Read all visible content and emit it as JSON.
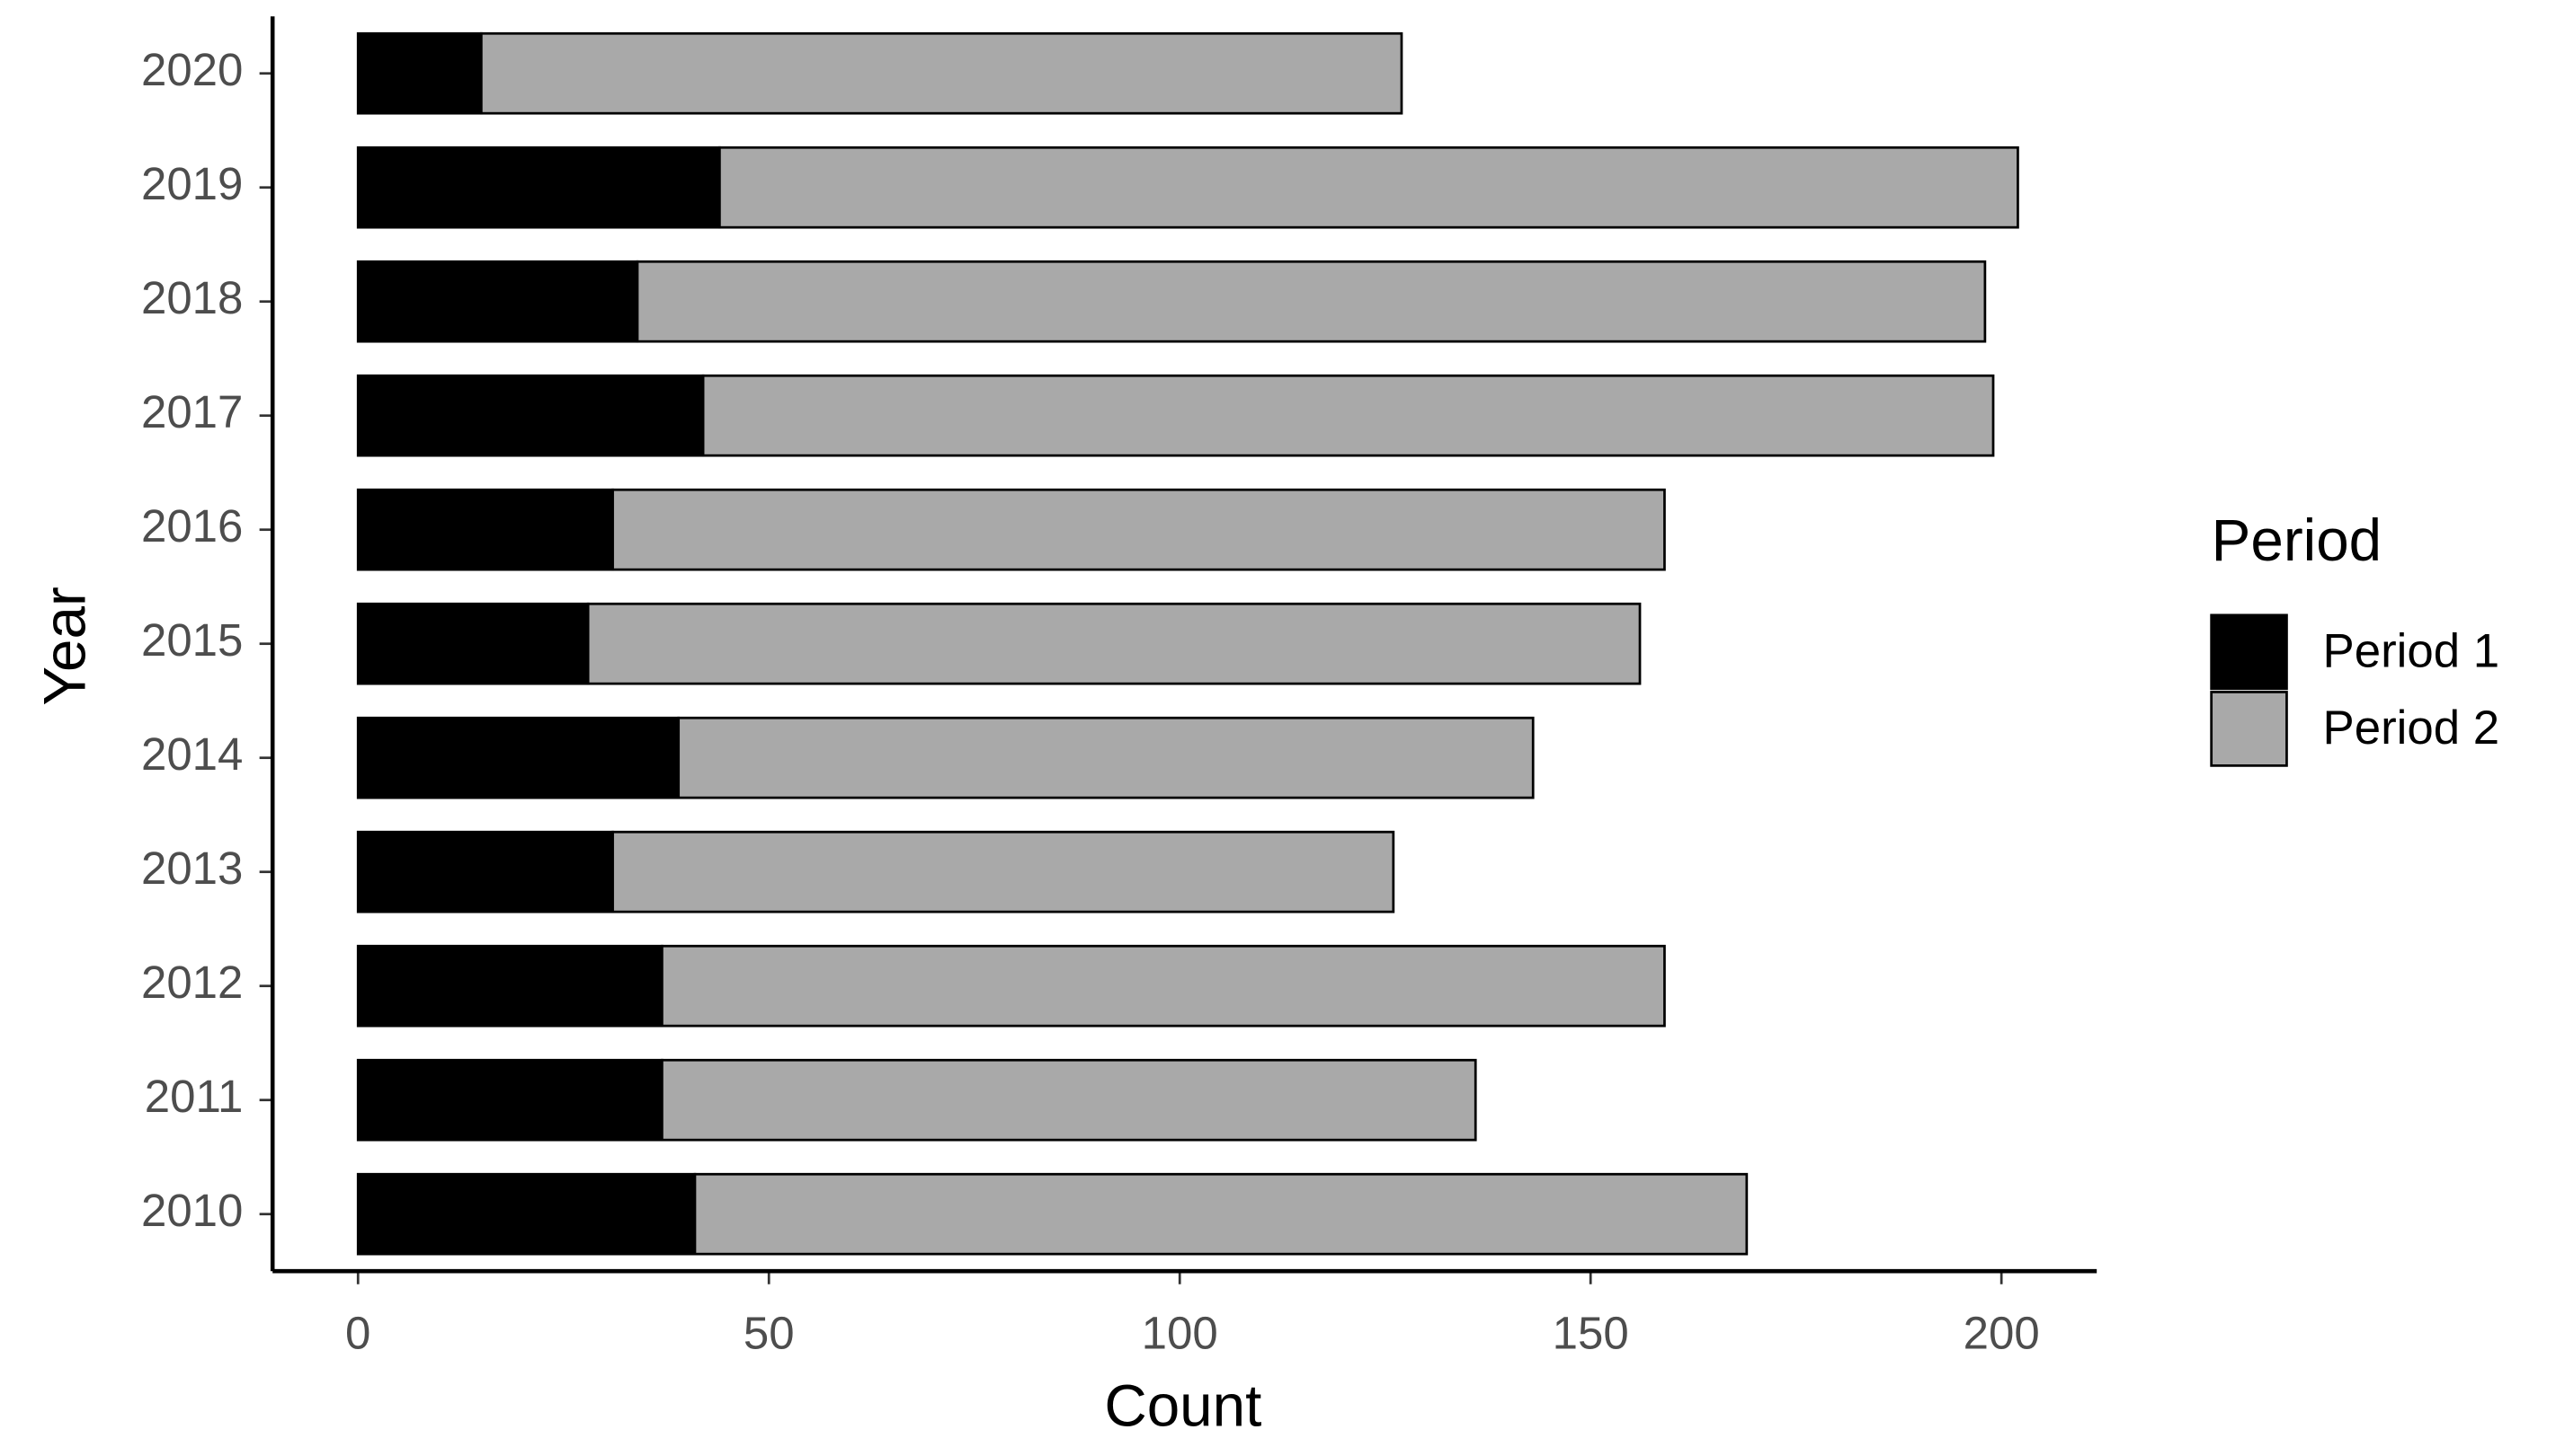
{
  "chart_data": {
    "type": "stacked-barh",
    "x_label": "Count",
    "y_label": "Year",
    "legend_title": "Period",
    "categories": [
      "2010",
      "2011",
      "2012",
      "2013",
      "2014",
      "2015",
      "2016",
      "2017",
      "2018",
      "2019",
      "2020"
    ],
    "series": [
      {
        "name": "Period 1",
        "color": "#000000",
        "values": [
          41,
          37,
          37,
          31,
          39,
          28,
          31,
          42,
          34,
          44,
          15
        ]
      },
      {
        "name": "Period 2",
        "color": "#a9a9a9",
        "values": [
          128,
          99,
          122,
          95,
          104,
          128,
          128,
          157,
          164,
          158,
          112
        ]
      }
    ],
    "xlim": [
      -10.4,
      211.6
    ],
    "xticks": [
      0,
      50,
      100,
      150,
      200
    ],
    "grid": false,
    "legend": "right"
  }
}
